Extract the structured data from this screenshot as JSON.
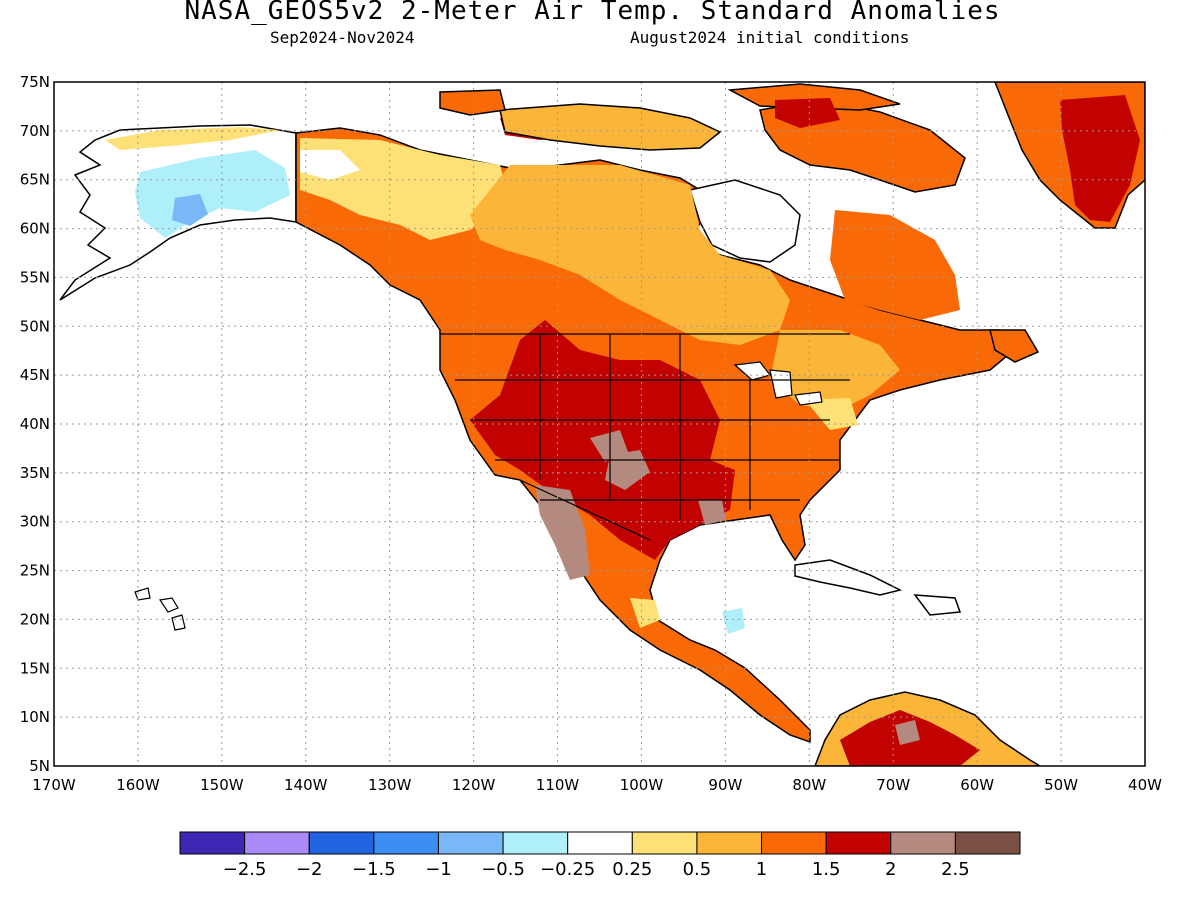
{
  "title": "NASA_GEOS5v2 2-Meter Air Temp. Standard Anomalies",
  "subtitle_left": "Sep2024-Nov2024",
  "subtitle_right": "August2024 initial conditions",
  "map": {
    "lat_labels": [
      "75N",
      "70N",
      "65N",
      "60N",
      "55N",
      "50N",
      "45N",
      "40N",
      "35N",
      "30N",
      "25N",
      "20N",
      "15N",
      "10N",
      "5N"
    ],
    "lon_labels": [
      "170W",
      "160W",
      "150W",
      "140W",
      "130W",
      "120W",
      "110W",
      "100W",
      "90W",
      "80W",
      "70W",
      "60W",
      "50W",
      "40W"
    ],
    "ocean_color": "#ffffff",
    "coast_color": "#000000"
  },
  "legend": {
    "colors": [
      "#3d27b4",
      "#a88bf7",
      "#2264e0",
      "#3c8ef3",
      "#78b8f6",
      "#aeeffa",
      "#ffffff",
      "#fde176",
      "#fbb63a",
      "#f96a07",
      "#c10200",
      "#b58a7e",
      "#7a5045"
    ],
    "labels": [
      "-2.5",
      "-2",
      "-1.5",
      "-1",
      "-0.5",
      "-0.25",
      "0.25",
      "0.5",
      "1",
      "1.5",
      "2",
      "2.5"
    ]
  }
}
